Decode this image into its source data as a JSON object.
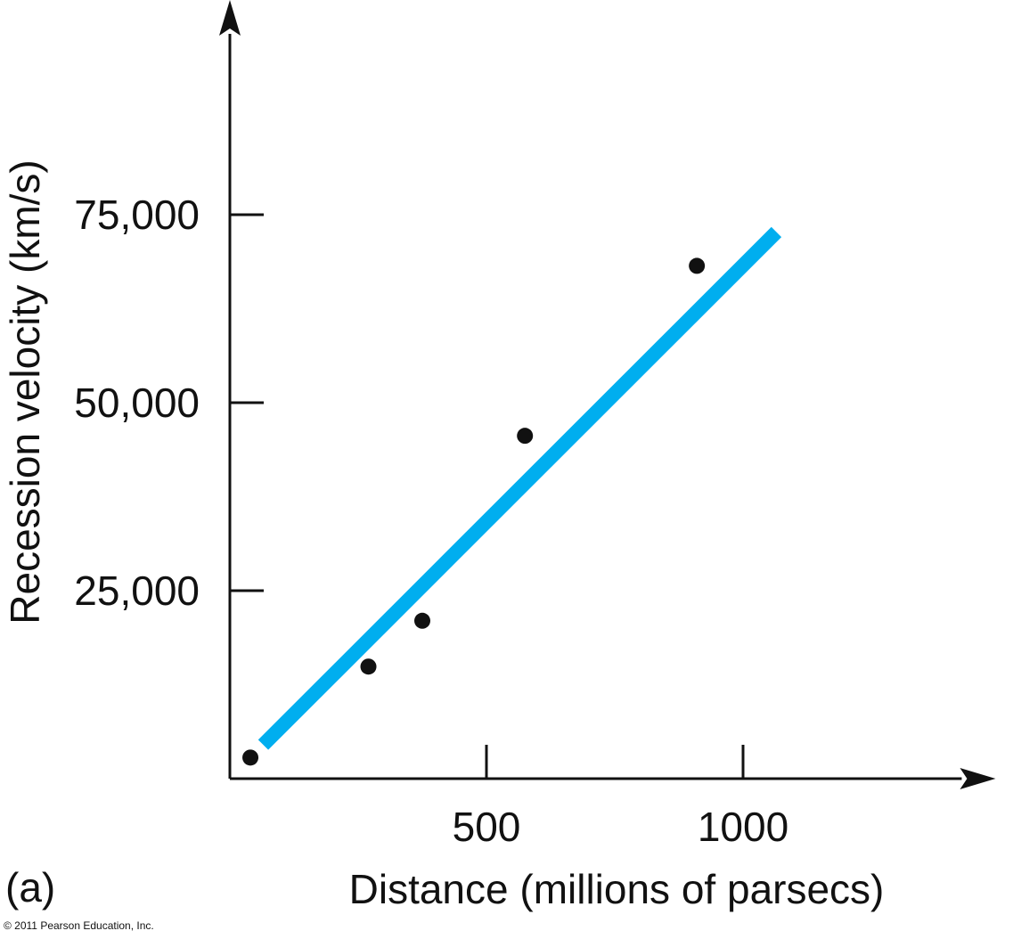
{
  "chart_data": {
    "type": "scatter",
    "panel_label": "(a)",
    "xlabel": "Distance (millions of parsecs)",
    "ylabel": "Recession velocity (km/s)",
    "xlim": [
      0,
      1440
    ],
    "ylim": [
      0,
      100000
    ],
    "xticks": [
      500,
      1000
    ],
    "xtick_labels": [
      "500",
      "1000"
    ],
    "yticks": [
      25000,
      50000,
      75000
    ],
    "ytick_labels": [
      "25,000",
      "50,000",
      "75,000"
    ],
    "grid": false,
    "points": [
      {
        "x": 40,
        "y": 2800
      },
      {
        "x": 270,
        "y": 14900
      },
      {
        "x": 375,
        "y": 21000
      },
      {
        "x": 575,
        "y": 45600
      },
      {
        "x": 910,
        "y": 68200
      }
    ],
    "fit_line": {
      "x": [
        65,
        1065
      ],
      "y": [
        4500,
        72700
      ]
    },
    "colors": {
      "fit_line": "#00AEEF",
      "points": "#111111",
      "axes": "#111111"
    },
    "copyright": "© 2011 Pearson Education, Inc."
  }
}
